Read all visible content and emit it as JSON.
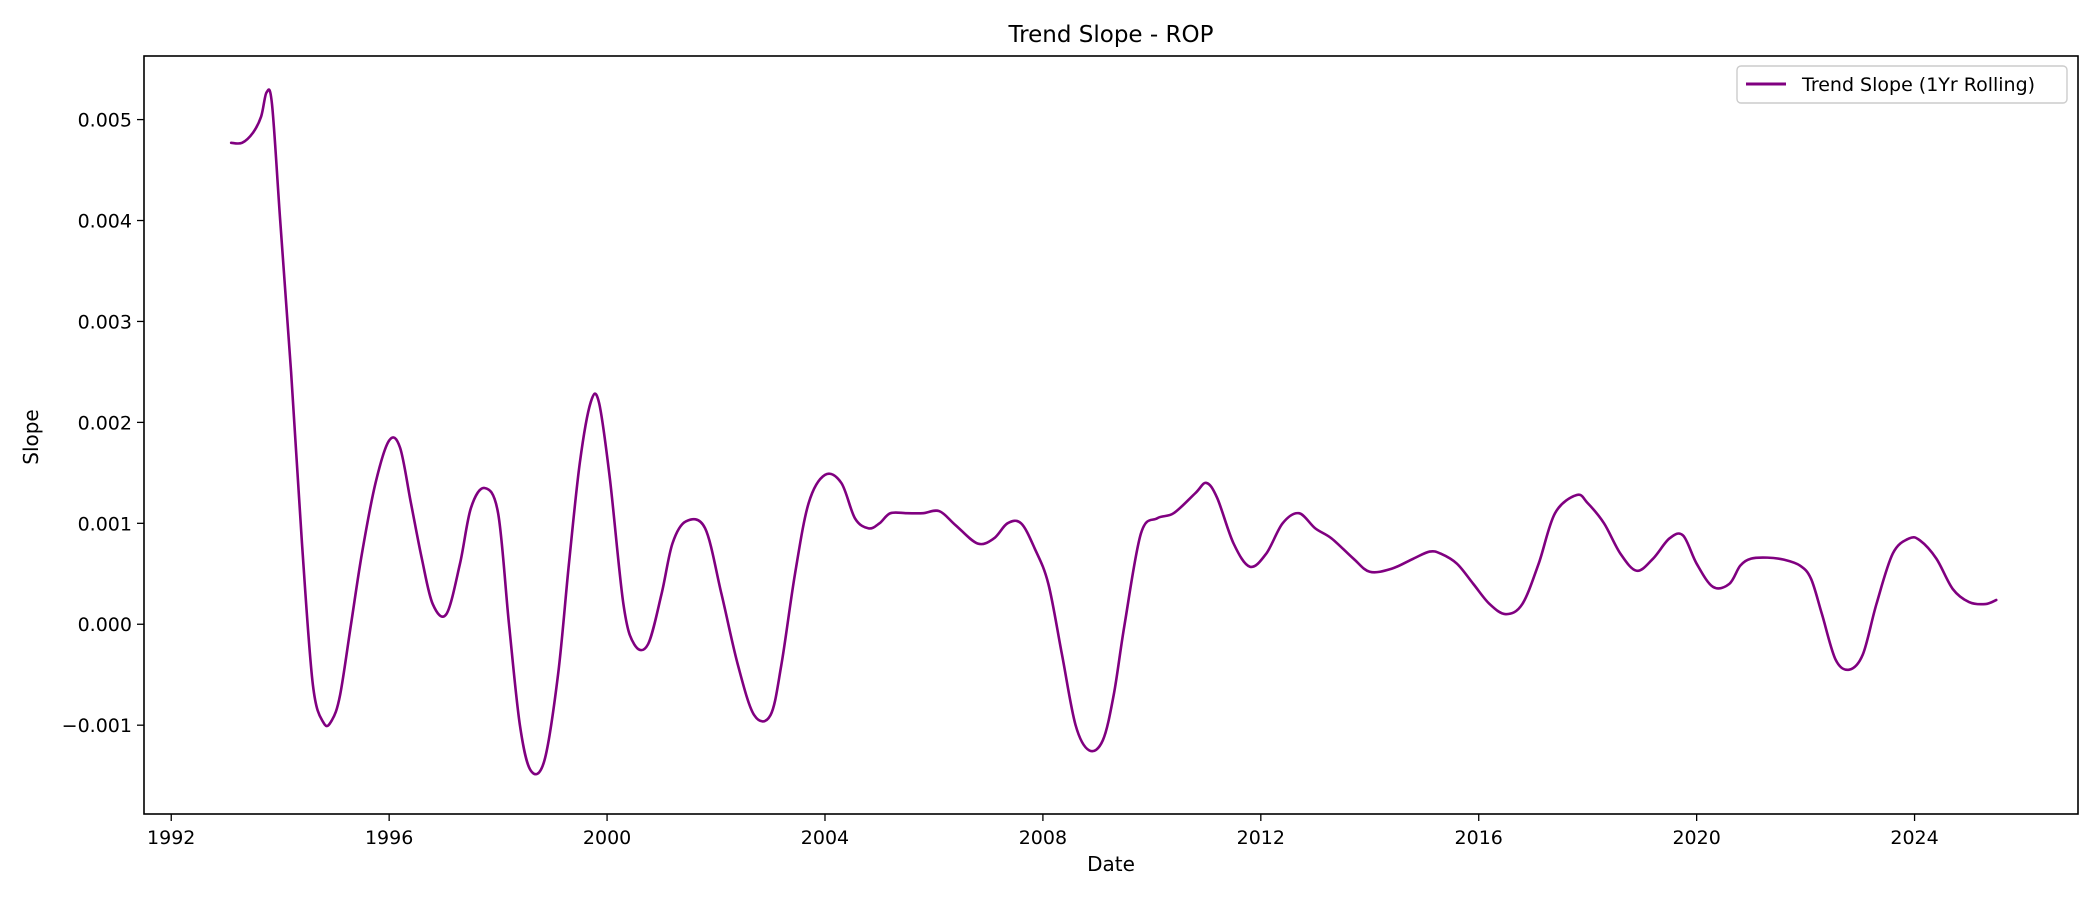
{
  "chart_data": {
    "type": "line",
    "title": "Trend Slope - ROP",
    "xlabel": "Date",
    "ylabel": "Slope",
    "x_tick_labels": [
      "1992",
      "1996",
      "2000",
      "2004",
      "2008",
      "2012",
      "2016",
      "2020",
      "2024"
    ],
    "y_tick_labels": [
      "−0.001",
      "0.000",
      "0.001",
      "0.002",
      "0.003",
      "0.004",
      "0.005"
    ],
    "xlim": [
      1991.5,
      2027.0
    ],
    "ylim": [
      -0.00188,
      0.00563
    ],
    "grid": false,
    "legend_position": "top-right",
    "series": [
      {
        "name": "Trend Slope (1Yr Rolling)",
        "color": "#800080",
        "x": [
          1993.1,
          1993.3,
          1993.5,
          1993.65,
          1993.75,
          1993.85,
          1994.0,
          1994.2,
          1994.4,
          1994.6,
          1994.8,
          1994.95,
          1995.1,
          1995.3,
          1995.5,
          1995.75,
          1996.0,
          1996.2,
          1996.4,
          1996.6,
          1996.8,
          1997.05,
          1997.3,
          1997.5,
          1997.75,
          1998.0,
          1998.2,
          1998.4,
          1998.6,
          1998.85,
          1999.1,
          1999.3,
          1999.5,
          1999.7,
          1999.85,
          2000.05,
          2000.3,
          2000.5,
          2000.75,
          2001.0,
          2001.2,
          2001.45,
          2001.8,
          2002.1,
          2002.4,
          2002.7,
          2003.0,
          2003.2,
          2003.45,
          2003.7,
          2004.0,
          2004.3,
          2004.55,
          2004.8,
          2005.0,
          2005.2,
          2005.5,
          2005.8,
          2006.1,
          2006.4,
          2006.8,
          2007.1,
          2007.35,
          2007.6,
          2007.85,
          2008.1,
          2008.35,
          2008.6,
          2008.85,
          2009.1,
          2009.3,
          2009.5,
          2009.8,
          2010.1,
          2010.4,
          2010.8,
          2011.0,
          2011.2,
          2011.5,
          2011.8,
          2012.1,
          2012.4,
          2012.7,
          2013.0,
          2013.3,
          2013.7,
          2014.0,
          2014.4,
          2014.8,
          2015.1,
          2015.3,
          2015.6,
          2015.9,
          2016.2,
          2016.5,
          2016.8,
          2017.1,
          2017.4,
          2017.8,
          2018.0,
          2018.3,
          2018.6,
          2018.9,
          2019.2,
          2019.5,
          2019.75,
          2020.0,
          2020.3,
          2020.6,
          2020.8,
          2021.0,
          2021.3,
          2021.6,
          2021.9,
          2022.1,
          2022.3,
          2022.55,
          2022.8,
          2023.05,
          2023.3,
          2023.6,
          2023.9,
          2024.1,
          2024.4,
          2024.7,
          2025.0,
          2025.3,
          2025.5
        ],
        "y": [
          0.00477,
          0.00477,
          0.00487,
          0.00503,
          0.00527,
          0.00515,
          0.004,
          0.0025,
          0.0008,
          -0.0006,
          -0.00098,
          -0.00095,
          -0.0007,
          0.0,
          0.0007,
          0.0014,
          0.00182,
          0.00175,
          0.0012,
          0.00065,
          0.0002,
          0.0001,
          0.0006,
          0.00115,
          0.00135,
          0.0011,
          0.0,
          -0.001,
          -0.00145,
          -0.00135,
          -0.0005,
          0.0006,
          0.0016,
          0.0022,
          0.0022,
          0.00145,
          0.0002,
          -0.0002,
          -0.0002,
          0.0003,
          0.0008,
          0.00102,
          0.00095,
          0.0003,
          -0.0004,
          -0.0009,
          -0.0009,
          -0.0004,
          0.0005,
          0.0012,
          0.00148,
          0.0014,
          0.00105,
          0.00095,
          0.001,
          0.0011,
          0.0011,
          0.0011,
          0.00112,
          0.00098,
          0.0008,
          0.00085,
          0.001,
          0.001,
          0.00075,
          0.0004,
          -0.0003,
          -0.001,
          -0.00125,
          -0.00115,
          -0.0007,
          0.0,
          0.0009,
          0.00105,
          0.0011,
          0.0013,
          0.0014,
          0.00125,
          0.0008,
          0.00057,
          0.0007,
          0.001,
          0.0011,
          0.00095,
          0.00085,
          0.00065,
          0.00052,
          0.00055,
          0.00065,
          0.00072,
          0.0007,
          0.0006,
          0.0004,
          0.0002,
          0.0001,
          0.0002,
          0.0006,
          0.0011,
          0.00128,
          0.0012,
          0.001,
          0.0007,
          0.00053,
          0.00065,
          0.00085,
          0.00088,
          0.0006,
          0.00037,
          0.0004,
          0.00058,
          0.00065,
          0.00066,
          0.00064,
          0.00058,
          0.00045,
          0.0001,
          -0.00035,
          -0.00045,
          -0.0003,
          0.0002,
          0.0007,
          0.00085,
          0.00083,
          0.00065,
          0.00035,
          0.00022,
          0.0002,
          0.00024
        ]
      }
    ]
  }
}
